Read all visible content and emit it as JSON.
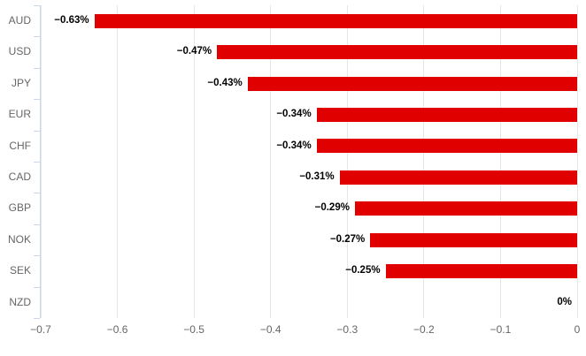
{
  "chart": {
    "background_color": "#ffffff",
    "bar_color": "#e00000",
    "gridline_color": "#e6e6e6",
    "axis_line_color": "#ccd6eb",
    "category_label_color": "#666666",
    "tick_label_color": "#666666",
    "value_label_color": "#000000"
  },
  "chart_data": {
    "type": "bar",
    "orientation": "horizontal",
    "title": "",
    "xlabel": "",
    "ylabel": "",
    "categories": [
      "AUD",
      "USD",
      "JPY",
      "EUR",
      "CHF",
      "CAD",
      "GBP",
      "NOK",
      "SEK",
      "NZD"
    ],
    "values": [
      -0.63,
      -0.47,
      -0.43,
      -0.34,
      -0.34,
      -0.31,
      -0.29,
      -0.27,
      -0.25,
      0
    ],
    "value_labels": [
      "−0.63%",
      "−0.47%",
      "−0.43%",
      "−0.34%",
      "−0.34%",
      "−0.31%",
      "−0.29%",
      "−0.27%",
      "−0.25%",
      "0%"
    ],
    "xlim": [
      -0.7,
      0
    ],
    "x_ticks": [
      -0.7,
      -0.6,
      -0.5,
      -0.4,
      -0.3,
      -0.2,
      -0.1,
      0
    ],
    "x_tick_labels": [
      "−0.7",
      "−0.6",
      "−0.5",
      "−0.4",
      "−0.3",
      "−0.2",
      "−0.1",
      "0"
    ],
    "grid": true,
    "legend": false,
    "bars_anchored_at": 0
  }
}
